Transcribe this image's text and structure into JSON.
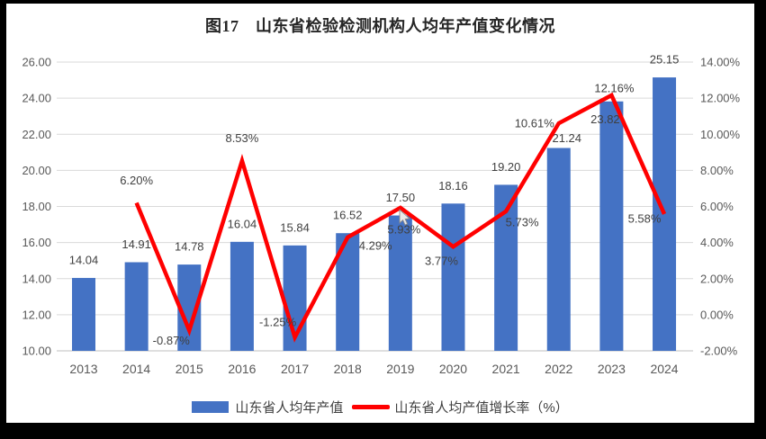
{
  "title": "图17　山东省检验检测机构人均年产值变化情况",
  "legend": {
    "bar": "山东省人均年产值",
    "line": "山东省人均产值增长率（%）"
  },
  "colors": {
    "bar": "#4472C4",
    "line": "#FF0000",
    "grid": "#D9D9D9",
    "axis_line": "#BFBFBF",
    "tick_text": "#595959",
    "label_text": "#404040",
    "frame": "#000000",
    "background": "#FFFFFF"
  },
  "chart_data": {
    "type": "bar",
    "subtype": "combo-bar-line",
    "title": "图17　山东省检验检测机构人均年产值变化情况",
    "categories": [
      "2013",
      "2014",
      "2015",
      "2016",
      "2017",
      "2018",
      "2019",
      "2020",
      "2021",
      "2022",
      "2023",
      "2024"
    ],
    "series": [
      {
        "name": "山东省人均年产值",
        "type": "bar",
        "axis": "left",
        "values": [
          14.04,
          14.91,
          14.78,
          16.04,
          15.84,
          16.52,
          17.5,
          18.16,
          19.2,
          21.24,
          23.82,
          25.15
        ],
        "labels": [
          "14.04",
          "14.91",
          "14.78",
          "16.04",
          "15.84",
          "16.52",
          "17.50",
          "18.16",
          "19.20",
          "21.24",
          "23.82",
          "25.15"
        ]
      },
      {
        "name": "山东省人均产值增长率（%）",
        "type": "line",
        "axis": "right",
        "values": [
          null,
          6.2,
          -0.87,
          8.53,
          -1.25,
          4.29,
          5.93,
          3.77,
          5.73,
          10.61,
          12.16,
          5.58
        ],
        "labels": [
          null,
          "6.20%",
          "-0.87%",
          "8.53%",
          "-1.25%",
          "4.29%",
          "5.93%",
          "3.77%",
          "5.73%",
          "10.61%",
          "12.16%",
          "5.58%"
        ]
      }
    ],
    "left_axis": {
      "min": 10,
      "max": 26,
      "step": 2,
      "ticks": [
        "26.00",
        "24.00",
        "22.00",
        "20.00",
        "18.00",
        "16.00",
        "14.00",
        "12.00",
        "10.00"
      ]
    },
    "right_axis": {
      "min": -2,
      "max": 14,
      "step": 2,
      "ticks": [
        "14.00%",
        "12.00%",
        "10.00%",
        "8.00%",
        "6.00%",
        "4.00%",
        "2.00%",
        "0.00%",
        "-2.00%"
      ]
    },
    "grid": true,
    "legend_position": "bottom"
  }
}
